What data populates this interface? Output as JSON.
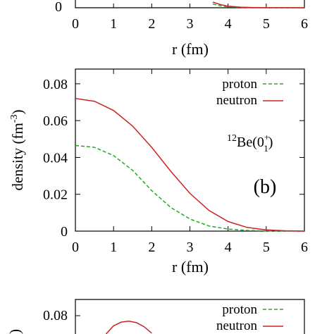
{
  "chart_data": [
    {
      "panel": "top (partial)",
      "type": "line",
      "xlabel": "r (fm)",
      "x_ticks": [
        "0",
        "1",
        "2",
        "3",
        "4",
        "5",
        "6"
      ],
      "y_ticks_visible": [
        "0"
      ],
      "xlim": [
        0,
        6
      ],
      "series": [
        {
          "name": "proton",
          "style": "dashed",
          "color": "#22aa22",
          "x": [
            3.6,
            3.8,
            4.0,
            4.3,
            4.6,
            5.0,
            6.0
          ],
          "y": [
            0.006,
            0.003,
            0.0015,
            0.0006,
            0.0002,
            0.0,
            0.0
          ]
        },
        {
          "name": "neutron",
          "style": "solid",
          "color": "#cc2222",
          "x": [
            3.6,
            3.8,
            4.0,
            4.3,
            4.6,
            5.0,
            6.0
          ],
          "y": [
            0.009,
            0.005,
            0.0025,
            0.001,
            0.0004,
            0.0001,
            0.0
          ]
        }
      ]
    },
    {
      "panel": "b",
      "type": "line",
      "panel_label": "(b)",
      "annotation": {
        "mass": "12",
        "element": "Be(0",
        "sup": "+",
        "sub": "1",
        "close": ")"
      },
      "xlabel": "r (fm)",
      "ylabel": "density (fm",
      "ylabel_sup": "-3",
      "ylabel_close": ")",
      "x_ticks": [
        "0",
        "1",
        "2",
        "3",
        "4",
        "5",
        "6"
      ],
      "y_ticks": [
        "0",
        "0.02",
        "0.04",
        "0.06",
        "0.08"
      ],
      "xlim": [
        0,
        6
      ],
      "ylim": [
        0,
        0.088
      ],
      "legend_position": "top-right",
      "series": [
        {
          "name": "proton",
          "style": "dashed",
          "color": "#22aa22",
          "x": [
            0,
            0.5,
            1.0,
            1.5,
            2.0,
            2.5,
            3.0,
            3.5,
            4.0,
            4.5,
            5.0,
            5.5,
            6.0
          ],
          "y": [
            0.0465,
            0.0455,
            0.041,
            0.033,
            0.022,
            0.0128,
            0.0066,
            0.0028,
            0.0011,
            0.0004,
            0.00012,
            3e-05,
            0.0
          ]
        },
        {
          "name": "neutron",
          "style": "solid",
          "color": "#cc2222",
          "x": [
            0,
            0.5,
            1.0,
            1.5,
            2.0,
            2.5,
            3.0,
            3.5,
            4.0,
            4.5,
            5.0,
            5.5,
            6.0
          ],
          "y": [
            0.072,
            0.0705,
            0.0655,
            0.057,
            0.0455,
            0.0325,
            0.0205,
            0.0112,
            0.0052,
            0.002,
            0.0007,
            0.0002,
            0.0
          ]
        }
      ]
    },
    {
      "panel": "bottom (partial)",
      "type": "line",
      "y_ticks_visible": [
        "0.08"
      ],
      "xlim": [
        0,
        6
      ],
      "ylim": [
        0,
        0.088
      ],
      "legend_position": "top-right",
      "series": [
        {
          "name": "proton",
          "style": "dashed",
          "color": "#22aa22"
        },
        {
          "name": "neutron",
          "style": "solid",
          "color": "#cc2222",
          "x": [
            0.8,
            1.0,
            1.2,
            1.4,
            1.6,
            1.8,
            2.0
          ],
          "y": [
            0.07,
            0.0745,
            0.0765,
            0.077,
            0.0762,
            0.074,
            0.0705
          ]
        }
      ]
    }
  ]
}
